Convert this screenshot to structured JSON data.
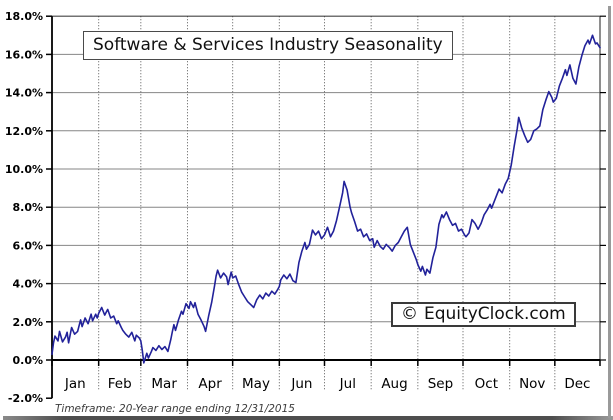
{
  "title_box": {
    "text": "Software & Services Industry Seasonality"
  },
  "logo_box": {
    "symbol": "©",
    "text": "EquityClock.com"
  },
  "footer": {
    "note": "Timeframe: 20-Year range ending 12/31/2015"
  },
  "chart_data": {
    "type": "line",
    "title": "Software & Services Industry Seasonality",
    "xlabel": "",
    "ylabel": "",
    "x_unit": "day_of_year",
    "categories": [
      "Jan",
      "Feb",
      "Mar",
      "Apr",
      "May",
      "Jun",
      "Jul",
      "Aug",
      "Sep",
      "Oct",
      "Nov",
      "Dec"
    ],
    "month_start_days": [
      1,
      32,
      60,
      91,
      121,
      152,
      182,
      213,
      244,
      274,
      305,
      335,
      366
    ],
    "ylim": [
      -2,
      18
    ],
    "y_tick_step": 2,
    "y_ticks": [
      18,
      16,
      14,
      12,
      10,
      8,
      6,
      4,
      2,
      0,
      -2
    ],
    "y_tick_labels": [
      "18.0%",
      "16.0%",
      "14.0%",
      "12.0%",
      "10.0%",
      "8.0%",
      "6.0%",
      "4.0%",
      "2.0%",
      "0.0%",
      "-2.0%"
    ],
    "grid": {
      "horizontal": "solid",
      "vertical": "dotted-at-month-boundaries"
    },
    "legend": "none",
    "colors": {
      "line": "#22229a",
      "grid": "#868686",
      "axis": "#000000",
      "dotted_grid": "#555555"
    },
    "series": [
      {
        "points": [
          [
            1,
            0.3
          ],
          [
            2,
            0.9
          ],
          [
            3,
            1.25
          ],
          [
            5,
            1.0
          ],
          [
            6,
            1.5
          ],
          [
            8,
            0.95
          ],
          [
            10,
            1.2
          ],
          [
            11,
            1.45
          ],
          [
            12,
            0.9
          ],
          [
            14,
            1.7
          ],
          [
            16,
            1.35
          ],
          [
            18,
            1.5
          ],
          [
            20,
            2.1
          ],
          [
            21,
            1.75
          ],
          [
            23,
            2.2
          ],
          [
            25,
            1.9
          ],
          [
            27,
            2.4
          ],
          [
            28,
            2.05
          ],
          [
            30,
            2.4
          ],
          [
            31,
            2.2
          ],
          [
            32,
            2.45
          ],
          [
            34,
            2.75
          ],
          [
            36,
            2.35
          ],
          [
            38,
            2.65
          ],
          [
            40,
            2.2
          ],
          [
            42,
            2.3
          ],
          [
            44,
            1.9
          ],
          [
            45,
            2.05
          ],
          [
            47,
            1.7
          ],
          [
            48,
            1.55
          ],
          [
            50,
            1.35
          ],
          [
            52,
            1.2
          ],
          [
            54,
            1.45
          ],
          [
            56,
            1.0
          ],
          [
            57,
            1.3
          ],
          [
            59,
            1.15
          ],
          [
            60,
            1.0
          ],
          [
            61,
            0.5
          ],
          [
            62,
            -0.15
          ],
          [
            64,
            0.35
          ],
          [
            65,
            0.1
          ],
          [
            67,
            0.45
          ],
          [
            68,
            0.65
          ],
          [
            70,
            0.5
          ],
          [
            72,
            0.75
          ],
          [
            74,
            0.55
          ],
          [
            76,
            0.7
          ],
          [
            78,
            0.45
          ],
          [
            80,
            1.1
          ],
          [
            81,
            1.5
          ],
          [
            82,
            1.85
          ],
          [
            83,
            1.55
          ],
          [
            85,
            2.1
          ],
          [
            87,
            2.55
          ],
          [
            88,
            2.4
          ],
          [
            90,
            2.95
          ],
          [
            92,
            2.7
          ],
          [
            93,
            3.05
          ],
          [
            95,
            2.75
          ],
          [
            96,
            3.0
          ],
          [
            98,
            2.4
          ],
          [
            100,
            2.1
          ],
          [
            102,
            1.75
          ],
          [
            103,
            1.5
          ],
          [
            105,
            2.3
          ],
          [
            107,
            3.0
          ],
          [
            109,
            3.9
          ],
          [
            110,
            4.4
          ],
          [
            111,
            4.7
          ],
          [
            113,
            4.3
          ],
          [
            115,
            4.55
          ],
          [
            117,
            4.35
          ],
          [
            118,
            3.95
          ],
          [
            120,
            4.6
          ],
          [
            121,
            4.3
          ],
          [
            123,
            4.4
          ],
          [
            125,
            3.95
          ],
          [
            127,
            3.55
          ],
          [
            129,
            3.3
          ],
          [
            131,
            3.05
          ],
          [
            133,
            2.9
          ],
          [
            135,
            2.75
          ],
          [
            137,
            3.15
          ],
          [
            139,
            3.4
          ],
          [
            141,
            3.2
          ],
          [
            143,
            3.5
          ],
          [
            145,
            3.35
          ],
          [
            147,
            3.6
          ],
          [
            149,
            3.45
          ],
          [
            151,
            3.7
          ],
          [
            152,
            3.85
          ],
          [
            153,
            4.2
          ],
          [
            155,
            4.45
          ],
          [
            157,
            4.25
          ],
          [
            159,
            4.5
          ],
          [
            161,
            4.15
          ],
          [
            163,
            4.05
          ],
          [
            165,
            5.1
          ],
          [
            167,
            5.7
          ],
          [
            169,
            6.15
          ],
          [
            170,
            5.8
          ],
          [
            172,
            6.05
          ],
          [
            174,
            6.8
          ],
          [
            176,
            6.55
          ],
          [
            178,
            6.75
          ],
          [
            180,
            6.35
          ],
          [
            182,
            6.55
          ],
          [
            184,
            6.95
          ],
          [
            186,
            6.45
          ],
          [
            188,
            6.75
          ],
          [
            190,
            7.3
          ],
          [
            192,
            8.0
          ],
          [
            194,
            8.75
          ],
          [
            195,
            9.35
          ],
          [
            197,
            8.9
          ],
          [
            199,
            8.0
          ],
          [
            200,
            7.7
          ],
          [
            202,
            7.25
          ],
          [
            204,
            6.75
          ],
          [
            206,
            6.85
          ],
          [
            208,
            6.45
          ],
          [
            210,
            6.6
          ],
          [
            212,
            6.25
          ],
          [
            214,
            6.35
          ],
          [
            215,
            5.9
          ],
          [
            217,
            6.25
          ],
          [
            219,
            5.95
          ],
          [
            221,
            5.8
          ],
          [
            223,
            6.05
          ],
          [
            225,
            5.9
          ],
          [
            227,
            5.7
          ],
          [
            229,
            6.0
          ],
          [
            231,
            6.15
          ],
          [
            233,
            6.45
          ],
          [
            235,
            6.75
          ],
          [
            237,
            6.95
          ],
          [
            239,
            6.05
          ],
          [
            241,
            5.65
          ],
          [
            243,
            5.25
          ],
          [
            244,
            5.0
          ],
          [
            246,
            4.65
          ],
          [
            247,
            4.9
          ],
          [
            249,
            4.45
          ],
          [
            250,
            4.75
          ],
          [
            252,
            4.55
          ],
          [
            254,
            5.35
          ],
          [
            256,
            5.9
          ],
          [
            258,
            7.1
          ],
          [
            260,
            7.6
          ],
          [
            261,
            7.45
          ],
          [
            263,
            7.75
          ],
          [
            265,
            7.35
          ],
          [
            267,
            7.05
          ],
          [
            269,
            7.15
          ],
          [
            271,
            6.75
          ],
          [
            273,
            6.85
          ],
          [
            275,
            6.55
          ],
          [
            276,
            6.45
          ],
          [
            278,
            6.65
          ],
          [
            280,
            7.35
          ],
          [
            282,
            7.15
          ],
          [
            284,
            6.85
          ],
          [
            286,
            7.15
          ],
          [
            288,
            7.6
          ],
          [
            290,
            7.85
          ],
          [
            292,
            8.15
          ],
          [
            293,
            7.95
          ],
          [
            296,
            8.55
          ],
          [
            298,
            8.95
          ],
          [
            300,
            8.75
          ],
          [
            302,
            9.2
          ],
          [
            304,
            9.5
          ],
          [
            306,
            10.2
          ],
          [
            308,
            11.2
          ],
          [
            310,
            12.1
          ],
          [
            311,
            12.7
          ],
          [
            313,
            12.15
          ],
          [
            315,
            11.75
          ],
          [
            317,
            11.4
          ],
          [
            319,
            11.55
          ],
          [
            321,
            12.0
          ],
          [
            323,
            12.1
          ],
          [
            325,
            12.25
          ],
          [
            327,
            13.1
          ],
          [
            329,
            13.6
          ],
          [
            331,
            14.05
          ],
          [
            333,
            13.75
          ],
          [
            334,
            13.5
          ],
          [
            336,
            13.7
          ],
          [
            338,
            14.35
          ],
          [
            340,
            14.75
          ],
          [
            342,
            15.2
          ],
          [
            343,
            14.9
          ],
          [
            345,
            15.45
          ],
          [
            347,
            14.75
          ],
          [
            349,
            14.45
          ],
          [
            351,
            15.35
          ],
          [
            353,
            15.95
          ],
          [
            355,
            16.45
          ],
          [
            357,
            16.75
          ],
          [
            358,
            16.55
          ],
          [
            360,
            17.0
          ],
          [
            362,
            16.55
          ],
          [
            363,
            16.6
          ],
          [
            365,
            16.35
          ]
        ]
      }
    ]
  }
}
